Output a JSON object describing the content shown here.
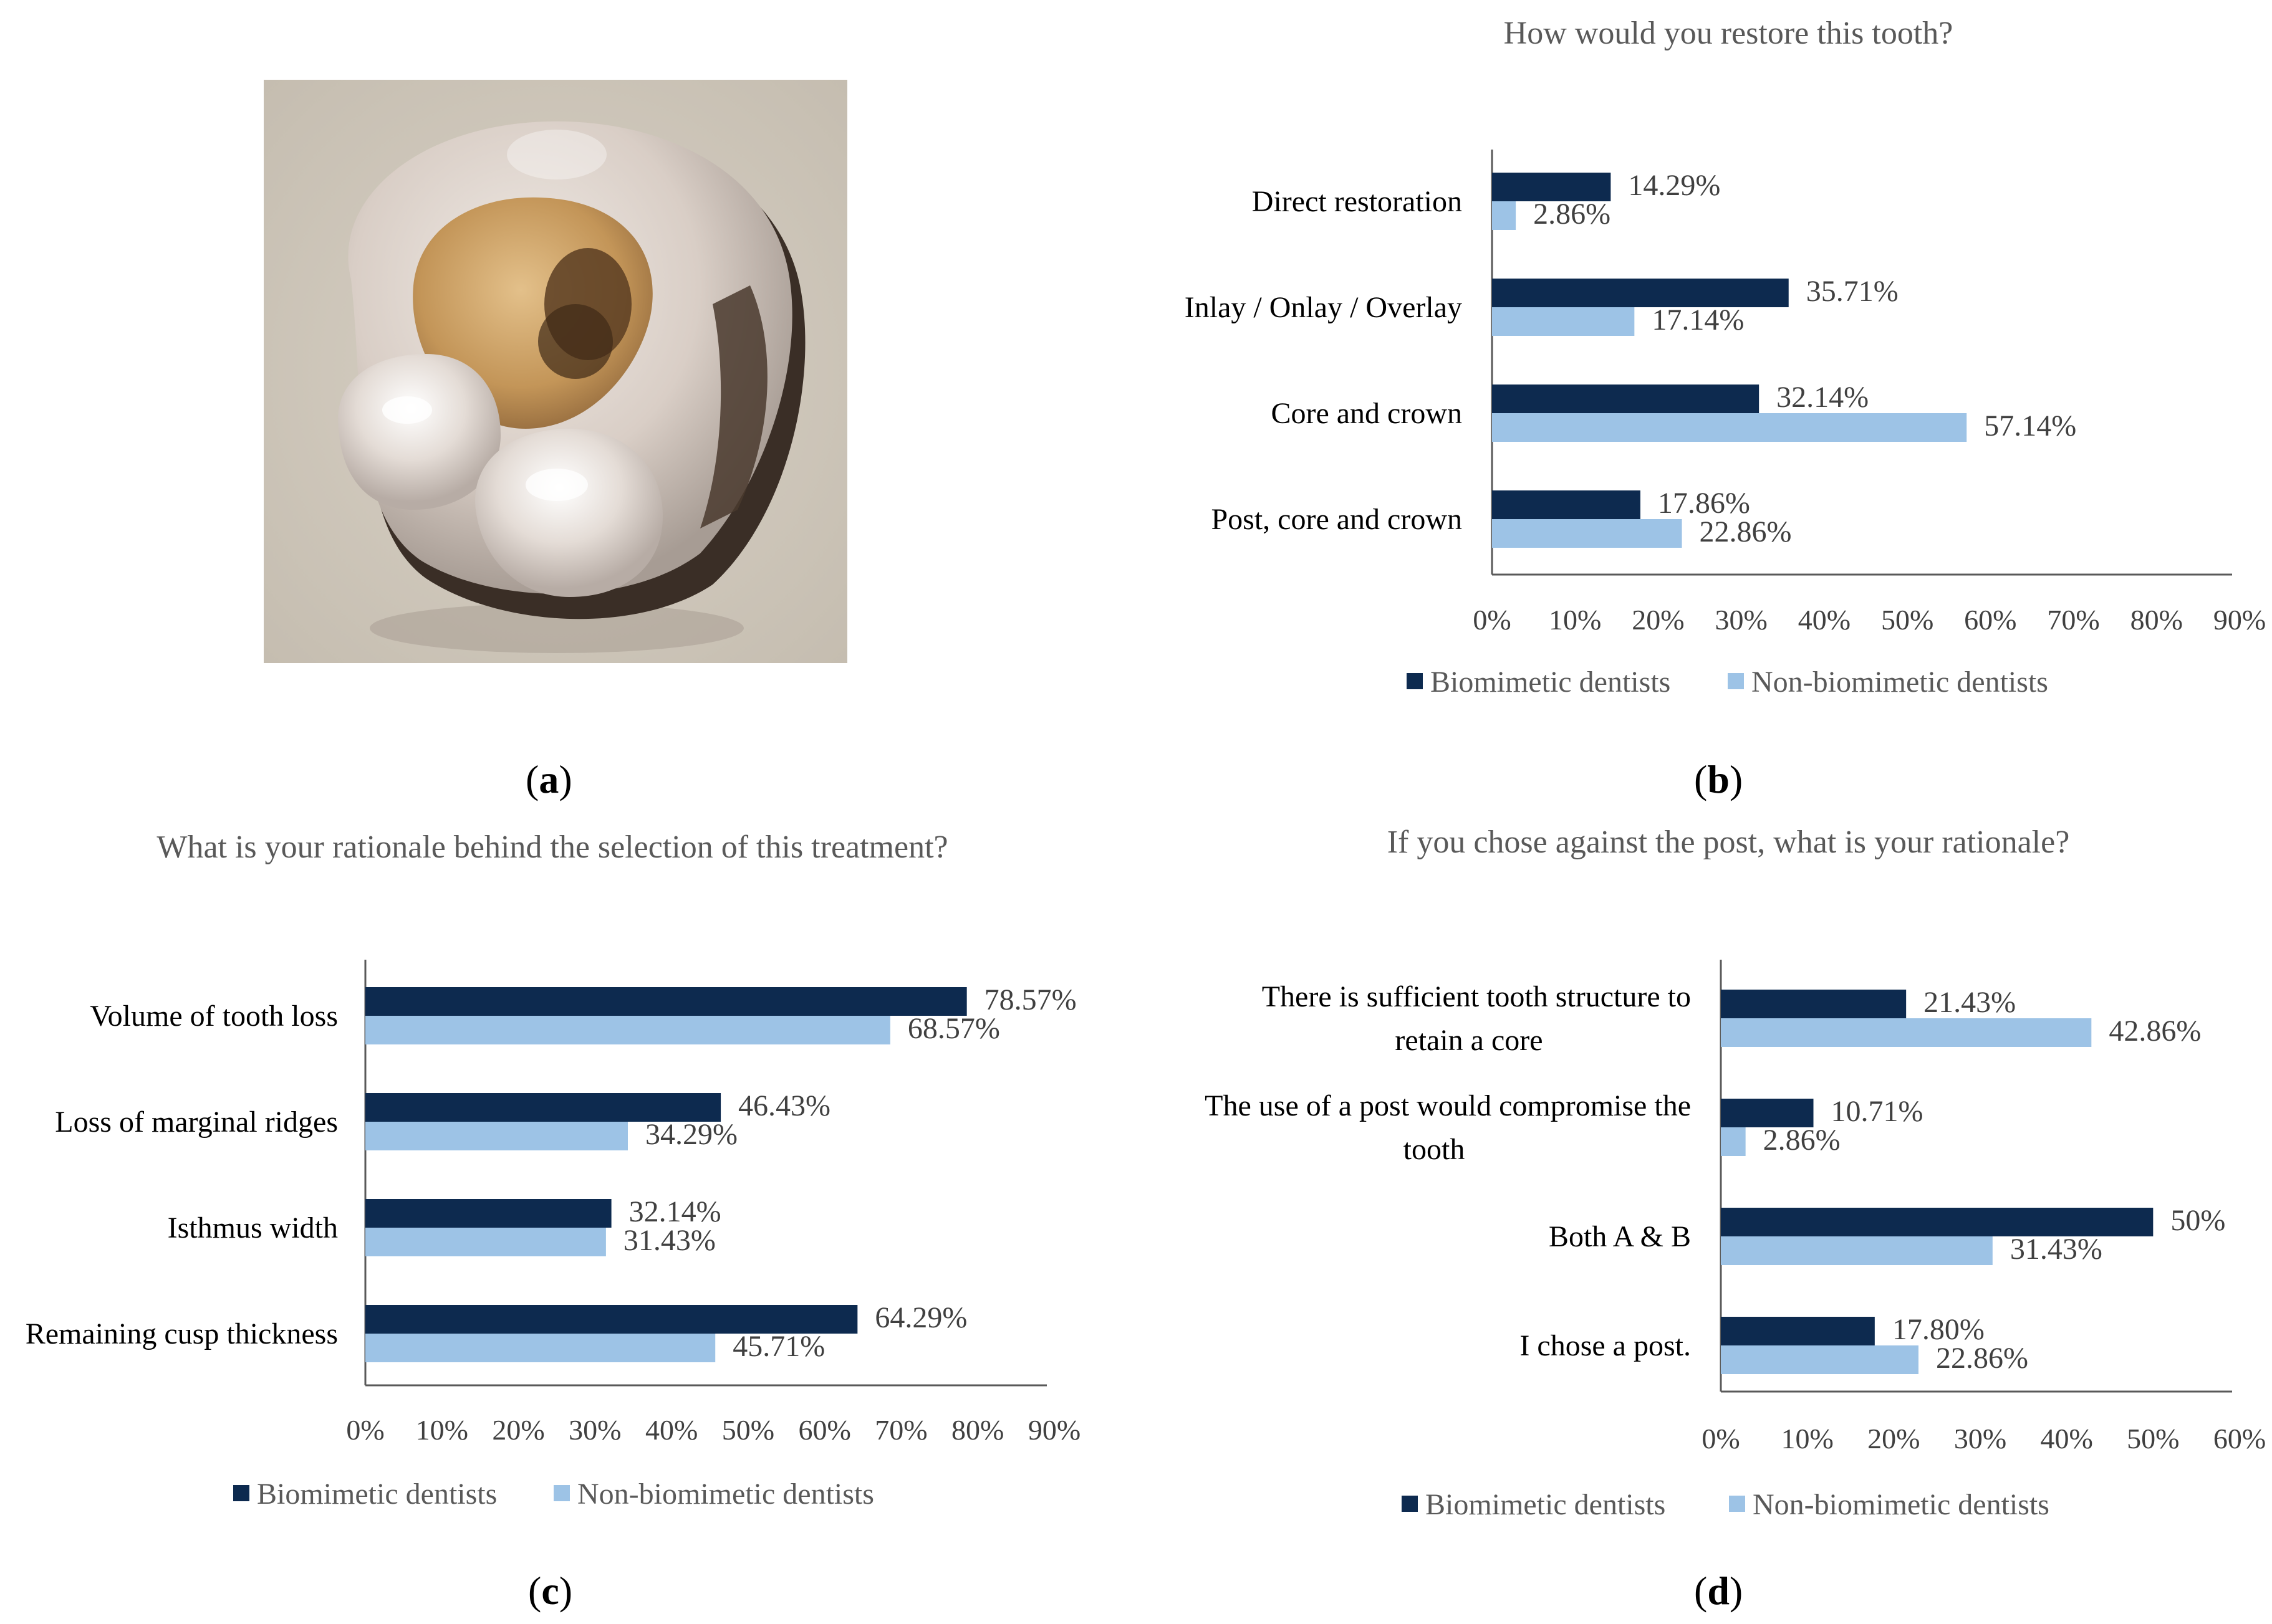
{
  "panel_labels": [
    "a",
    "b",
    "c",
    "d"
  ],
  "colors": {
    "biomimetic": "#0d2a4f",
    "non_biomimetic": "#9dc3e6",
    "axis": "#404040"
  },
  "chart_data": [
    {
      "id": "b",
      "type": "bar",
      "orientation": "horizontal",
      "title": "How would you restore this tooth?",
      "categories": [
        [
          "Direct restoration"
        ],
        [
          "Inlay / Onlay / Overlay"
        ],
        [
          "Core and crown"
        ],
        [
          "Post, core and crown"
        ]
      ],
      "series": [
        {
          "name": "Biomimetic dentists",
          "values": [
            14.29,
            35.71,
            32.14,
            17.86
          ],
          "labels": [
            "14.29%",
            "35.71%",
            "32.14%",
            "17.86%"
          ]
        },
        {
          "name": "Non-biomimetic dentists",
          "values": [
            2.86,
            17.14,
            57.14,
            22.86
          ],
          "labels": [
            "2.86%",
            "17.14%",
            "57.14%",
            "22.86%"
          ]
        }
      ],
      "xlim": [
        0,
        90
      ],
      "xticks": [
        "0%",
        "10%",
        "20%",
        "30%",
        "40%",
        "50%",
        "60%",
        "70%",
        "80%",
        "90%"
      ],
      "legend": "bottom"
    },
    {
      "id": "c",
      "type": "bar",
      "orientation": "horizontal",
      "title": "What is your rationale behind the selection of this treatment?",
      "categories": [
        [
          "Volume of tooth loss"
        ],
        [
          "Loss of marginal ridges"
        ],
        [
          "Isthmus width"
        ],
        [
          "Remaining cusp thickness"
        ]
      ],
      "series": [
        {
          "name": "Biomimetic dentists",
          "values": [
            78.57,
            46.43,
            32.14,
            64.29
          ],
          "labels": [
            "78.57%",
            "46.43%",
            "32.14%",
            "64.29%"
          ]
        },
        {
          "name": "Non-biomimetic dentists",
          "values": [
            68.57,
            34.29,
            31.43,
            45.71
          ],
          "labels": [
            "68.57%",
            "34.29%",
            "31.43%",
            "45.71%"
          ]
        }
      ],
      "xlim": [
        0,
        90
      ],
      "xticks": [
        "0%",
        "10%",
        "20%",
        "30%",
        "40%",
        "50%",
        "60%",
        "70%",
        "80%",
        "90%"
      ],
      "legend": "bottom"
    },
    {
      "id": "d",
      "type": "bar",
      "orientation": "horizontal",
      "title": "If you chose against the post, what is your rationale?",
      "categories": [
        [
          "There is sufficient tooth structure to",
          "retain a core"
        ],
        [
          "The use of a post would compromise the",
          "tooth"
        ],
        [
          "Both A & B"
        ],
        [
          "I chose a post."
        ]
      ],
      "series": [
        {
          "name": "Biomimetic dentists",
          "values": [
            21.43,
            10.71,
            50,
            17.8
          ],
          "labels": [
            "21.43%",
            "10.71%",
            "50%",
            "17.80%"
          ]
        },
        {
          "name": "Non-biomimetic dentists",
          "values": [
            42.86,
            2.86,
            31.43,
            22.86
          ],
          "labels": [
            "42.86%",
            "2.86%",
            "31.43%",
            "22.86%"
          ]
        }
      ],
      "xlim": [
        0,
        60
      ],
      "xticks": [
        "0%",
        "10%",
        "20%",
        "30%",
        "40%",
        "50%",
        "60%"
      ],
      "legend": "bottom"
    }
  ]
}
